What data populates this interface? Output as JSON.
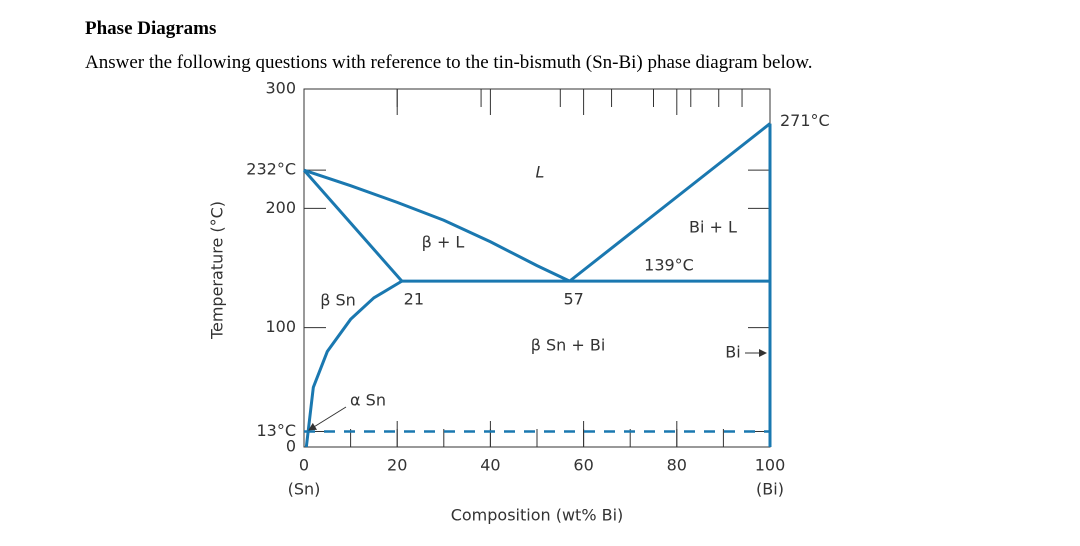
{
  "heading": "Phase Diagrams",
  "instructions": "Answer the following questions with reference to the tin-bismuth (Sn-Bi) phase diagram below.",
  "chart_data": {
    "type": "phase-diagram",
    "xlabel": "Composition (wt% Bi)",
    "ylabel": "Temperature (°C)",
    "xlim": [
      0,
      100
    ],
    "ylim": [
      0,
      300
    ],
    "xticks": [
      0,
      20,
      40,
      60,
      80,
      100
    ],
    "x_end_labels": [
      "(Sn)",
      "(Bi)"
    ],
    "yticks": [
      0,
      {
        "value": 13,
        "label": "13°C"
      },
      100,
      200,
      {
        "value": 232,
        "label": "232°C"
      },
      300
    ],
    "temperature_labels": [
      {
        "value": 139,
        "label": "139°C"
      },
      {
        "value": 271,
        "label": "271°C"
      }
    ],
    "compositions": [
      21,
      57
    ],
    "regions": [
      "L",
      "β + L",
      "Bi + L",
      "β Sn",
      "α Sn",
      "β Sn + Bi",
      "Bi"
    ],
    "series": [
      {
        "color": "#1a78b0",
        "x": [
          0,
          10,
          20,
          30,
          40,
          50,
          57
        ],
        "values": [
          232,
          219,
          205,
          190,
          172,
          152,
          139
        ]
      },
      {
        "color": "#1a78b0",
        "x": [
          0,
          21
        ],
        "values": [
          232,
          139
        ]
      },
      {
        "color": "#1a78b0",
        "x": [
          21,
          100
        ],
        "values": [
          139,
          139
        ]
      },
      {
        "color": "#1a78b0",
        "x": [
          57,
          100
        ],
        "values": [
          139,
          271
        ]
      },
      {
        "color": "#1a78b0",
        "x": [
          21,
          15,
          10,
          5,
          2,
          0.5
        ],
        "values": [
          139,
          125,
          107,
          80,
          50,
          0
        ]
      },
      {
        "color": "#1a78b0",
        "x": [
          100,
          100
        ],
        "values": [
          0,
          271
        ]
      },
      {
        "color": "#1a78b0",
        "x": [
          0,
          100
        ],
        "values": [
          13,
          13
        ],
        "style": "dashed"
      }
    ]
  }
}
